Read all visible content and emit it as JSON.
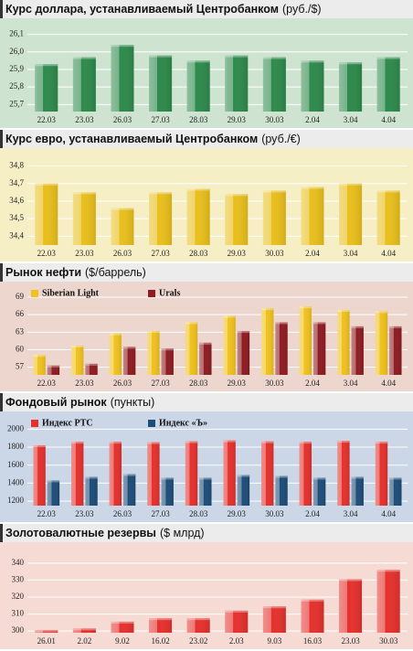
{
  "chart_data": [
    {
      "type": "bar",
      "title": "Курс доллара, устанавливаемый Центробанком",
      "unit": "(руб./$)",
      "categories": [
        "22.03",
        "23.03",
        "26.03",
        "27.03",
        "28.03",
        "29.03",
        "30.03",
        "2.04",
        "3.04",
        "4.04"
      ],
      "values": [
        25.93,
        25.97,
        26.04,
        25.98,
        25.95,
        25.98,
        25.97,
        25.95,
        25.94,
        25.97
      ],
      "color": "#2e8a4c",
      "panel": "#cfe4d0",
      "ylim": [
        25.66,
        26.15
      ],
      "yticks": [
        {
          "value": 25.7,
          "label": "25,7"
        },
        {
          "value": 25.8,
          "label": "25,8"
        },
        {
          "value": 25.9,
          "label": "25,9"
        },
        {
          "value": 26.0,
          "label": "26,0"
        },
        {
          "value": 26.1,
          "label": "26,1"
        }
      ],
      "grid": true
    },
    {
      "type": "bar",
      "title": "Курс евро, устанавливаемый Центробанком",
      "unit": "(руб./€)",
      "categories": [
        "22.03",
        "23.03",
        "26.03",
        "27.03",
        "28.03",
        "29.03",
        "30.03",
        "2.04",
        "3.04",
        "4.04"
      ],
      "values": [
        34.7,
        34.65,
        34.56,
        34.65,
        34.67,
        34.64,
        34.66,
        34.68,
        34.7,
        34.66
      ],
      "color": "#e9bf1c",
      "panel": "#f6efc6",
      "ylim": [
        34.35,
        34.86
      ],
      "yticks": [
        {
          "value": 34.4,
          "label": "34,4"
        },
        {
          "value": 34.5,
          "label": "34,5"
        },
        {
          "value": 34.6,
          "label": "34,6"
        },
        {
          "value": 34.7,
          "label": "34,7"
        },
        {
          "value": 34.8,
          "label": "34,8"
        }
      ],
      "grid": true
    },
    {
      "type": "grouped_bar",
      "title": "Рынок нефти",
      "unit": "($/баррель)",
      "categories": [
        "22.03",
        "23.03",
        "26.03",
        "27.03",
        "28.03",
        "29.03",
        "30.03",
        "2.04",
        "3.04",
        "4.04"
      ],
      "series": [
        {
          "name": "Siberian Light",
          "color": "#f0c21e",
          "values": [
            59.1,
            60.7,
            62.8,
            63.2,
            64.7,
            65.8,
            67.1,
            67.4,
            66.8,
            66.6
          ]
        },
        {
          "name": "Urals",
          "color": "#8e1c22",
          "values": [
            57.3,
            57.6,
            60.5,
            60.2,
            61.2,
            63.2,
            64.7,
            64.7,
            64.0,
            64.0
          ]
        }
      ],
      "panel": "#ecd6ce",
      "ylim": [
        55.7,
        70.4
      ],
      "yticks": [
        57,
        60,
        63,
        66,
        69
      ],
      "grid": true
    },
    {
      "type": "grouped_bar",
      "title": "Фондовый рынок",
      "unit": "(пункты)",
      "categories": [
        "22.03",
        "23.03",
        "26.03",
        "27.03",
        "28.03",
        "29.03",
        "30.03",
        "2.04",
        "3.04",
        "4.04"
      ],
      "series": [
        {
          "name": "Индекс РТС",
          "color": "#e5312d",
          "values": [
            1820,
            1860,
            1860,
            1855,
            1865,
            1875,
            1865,
            1860,
            1870,
            1860
          ]
        },
        {
          "name": "Индекс «Ъ»",
          "color": "#1d4d78",
          "values": [
            1430,
            1470,
            1500,
            1460,
            1460,
            1490,
            1480,
            1460,
            1470,
            1460
          ]
        }
      ],
      "panel": "#cbd6e6",
      "ylim": [
        1150,
        2115
      ],
      "yticks": [
        1200,
        1400,
        1600,
        1800,
        2000
      ],
      "grid": true
    },
    {
      "type": "bar",
      "title": "Золотовалютные резервы",
      "unit": "($ млрд)",
      "categories": [
        "26.01",
        "2.02",
        "9.02",
        "16.02",
        "23.02",
        "2.03",
        "9.03",
        "16.03",
        "23.03",
        "30.03"
      ],
      "values": [
        300.5,
        301.5,
        305.5,
        307.5,
        307.5,
        312,
        314.5,
        318.5,
        330.5,
        336
      ],
      "color": "#e5312d",
      "panel": "#f5dbd3",
      "ylim": [
        299,
        348
      ],
      "yticks": [
        300,
        310,
        320,
        330,
        340
      ],
      "grid": true
    }
  ]
}
